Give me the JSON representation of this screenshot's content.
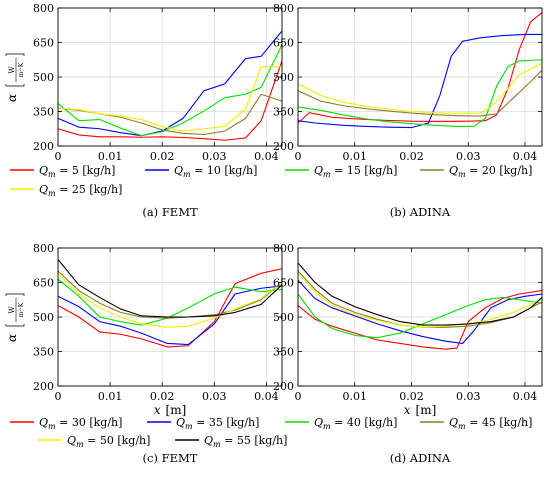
{
  "figure": {
    "ylabel_main": "α",
    "ylabel_unit_num": "W",
    "ylabel_unit_den": "m²·K",
    "xlabel_text": "x",
    "xlabel_unit": "[m]",
    "captions": [
      "(a) FEMT",
      "(b) ADINA",
      "(c) FEMT",
      "(d) ADINA"
    ]
  },
  "legends": [
    {
      "entries": [
        {
          "sym": "Q",
          "sub": "m",
          "text": " = 5 [kg/h]",
          "color": "#ff0000"
        },
        {
          "sym": "Q",
          "sub": "m",
          "text": " = 10 [kg/h]",
          "color": "#0000ff"
        },
        {
          "sym": "Q",
          "sub": "m",
          "text": " = 15 [kg/h]",
          "color": "#00e000"
        },
        {
          "sym": "Q",
          "sub": "m",
          "text": " = 20 [kg/h]",
          "color": "#8b7d2b"
        },
        {
          "sym": "Q",
          "sub": "m",
          "text": " = 25 [kg/h]",
          "color": "#f0f000"
        }
      ]
    },
    {
      "entries": [
        {
          "sym": "Q",
          "sub": "m",
          "text": " = 30 [kg/h]",
          "color": "#ff0000"
        },
        {
          "sym": "Q",
          "sub": "m",
          "text": " = 35 [kg/h]",
          "color": "#0000ff"
        },
        {
          "sym": "Q",
          "sub": "m",
          "text": " = 40 [kg/h]",
          "color": "#00e000"
        },
        {
          "sym": "Q",
          "sub": "m",
          "text": " = 45 [kg/h]",
          "color": "#8b7d2b"
        },
        {
          "sym": "Q",
          "sub": "m",
          "text": " = 50 [kg/h]",
          "color": "#f0f000"
        },
        {
          "sym": "Q",
          "sub": "m",
          "text": " = 55 [kg/h]",
          "color": "#000000"
        }
      ]
    }
  ],
  "chart_data": [
    {
      "type": "line",
      "panel": "a",
      "caption": "(a) FEMT",
      "xlim": [
        0,
        0.043
      ],
      "ylim": [
        200,
        800
      ],
      "xticks": [
        0,
        0.01,
        0.02,
        0.03,
        0.04
      ],
      "xtick_labels": [
        "0",
        "0.01",
        "0.02",
        "0.03",
        "0.04"
      ],
      "yticks": [
        200,
        350,
        500,
        650,
        800
      ],
      "ytick_labels": [
        "200",
        "350",
        "500",
        "650",
        "800"
      ],
      "grid": true,
      "series": [
        {
          "name": "Q_m = 5 [kg/h]",
          "color": "#ff0000",
          "x": [
            0,
            0.004,
            0.008,
            0.012,
            0.016,
            0.02,
            0.024,
            0.028,
            0.032,
            0.036,
            0.039,
            0.043
          ],
          "y": [
            275,
            248,
            240,
            240,
            238,
            240,
            237,
            232,
            225,
            235,
            310,
            570
          ]
        },
        {
          "name": "Q_m = 10 [kg/h]",
          "color": "#0000ff",
          "x": [
            0,
            0.004,
            0.008,
            0.012,
            0.016,
            0.02,
            0.024,
            0.028,
            0.032,
            0.036,
            0.039,
            0.043
          ],
          "y": [
            320,
            282,
            275,
            258,
            245,
            265,
            320,
            440,
            470,
            580,
            590,
            700
          ]
        },
        {
          "name": "Q_m = 15 [kg/h]",
          "color": "#00e000",
          "x": [
            0,
            0.004,
            0.008,
            0.012,
            0.016,
            0.02,
            0.024,
            0.028,
            0.032,
            0.036,
            0.039,
            0.043
          ],
          "y": [
            385,
            310,
            315,
            278,
            245,
            262,
            300,
            352,
            410,
            425,
            455,
            640
          ]
        },
        {
          "name": "Q_m = 20 [kg/h]",
          "color": "#8b7d2b",
          "x": [
            0,
            0.004,
            0.008,
            0.012,
            0.016,
            0.02,
            0.024,
            0.028,
            0.032,
            0.036,
            0.039,
            0.043
          ],
          "y": [
            365,
            355,
            340,
            325,
            300,
            270,
            255,
            250,
            265,
            320,
            425,
            395
          ]
        },
        {
          "name": "Q_m = 25 [kg/h]",
          "color": "#f0f000",
          "x": [
            0,
            0.004,
            0.008,
            0.012,
            0.016,
            0.02,
            0.024,
            0.028,
            0.032,
            0.036,
            0.039,
            0.043
          ],
          "y": [
            365,
            358,
            340,
            330,
            315,
            285,
            265,
            275,
            285,
            360,
            545,
            545
          ]
        }
      ]
    },
    {
      "type": "line",
      "panel": "b",
      "caption": "(b) ADINA",
      "xlim": [
        0,
        0.043
      ],
      "ylim": [
        200,
        800
      ],
      "xticks": [
        0,
        0.01,
        0.02,
        0.03,
        0.04
      ],
      "xtick_labels": [
        "0",
        "0.01",
        "0.02",
        "0.03",
        "0.04"
      ],
      "yticks": [
        200,
        350,
        500,
        650,
        800
      ],
      "ytick_labels": [
        "200",
        "350",
        "500",
        "650",
        "800"
      ],
      "grid": true,
      "series": [
        {
          "name": "Q_m = 5 [kg/h]",
          "color": "#ff0000",
          "x": [
            0,
            0.002,
            0.006,
            0.01,
            0.015,
            0.02,
            0.025,
            0.03,
            0.033,
            0.035,
            0.037,
            0.039,
            0.041,
            0.043
          ],
          "y": [
            300,
            345,
            325,
            318,
            312,
            308,
            307,
            308,
            310,
            335,
            450,
            620,
            740,
            780
          ]
        },
        {
          "name": "Q_m = 10 [kg/h]",
          "color": "#0000ff",
          "x": [
            0,
            0.003,
            0.008,
            0.012,
            0.016,
            0.02,
            0.023,
            0.025,
            0.027,
            0.029,
            0.032,
            0.036,
            0.04,
            0.043
          ],
          "y": [
            310,
            300,
            290,
            285,
            282,
            280,
            300,
            420,
            590,
            655,
            670,
            680,
            685,
            685
          ]
        },
        {
          "name": "Q_m = 15 [kg/h]",
          "color": "#00e000",
          "x": [
            0,
            0.004,
            0.008,
            0.012,
            0.016,
            0.02,
            0.024,
            0.028,
            0.031,
            0.033,
            0.035,
            0.037,
            0.039,
            0.043
          ],
          "y": [
            370,
            355,
            335,
            318,
            305,
            297,
            290,
            285,
            285,
            320,
            460,
            545,
            570,
            575
          ]
        },
        {
          "name": "Q_m = 20 [kg/h]",
          "color": "#8b7d2b",
          "x": [
            0,
            0.004,
            0.008,
            0.012,
            0.016,
            0.02,
            0.024,
            0.028,
            0.032,
            0.035,
            0.038,
            0.041,
            0.043
          ],
          "y": [
            440,
            395,
            375,
            362,
            352,
            343,
            336,
            332,
            330,
            340,
            410,
            480,
            530
          ]
        },
        {
          "name": "Q_m = 25 [kg/h]",
          "color": "#f0f000",
          "x": [
            0,
            0.004,
            0.008,
            0.012,
            0.016,
            0.02,
            0.024,
            0.028,
            0.032,
            0.034,
            0.036,
            0.039,
            0.043
          ],
          "y": [
            470,
            420,
            390,
            372,
            360,
            350,
            345,
            342,
            342,
            370,
            420,
            510,
            560
          ]
        }
      ]
    },
    {
      "type": "line",
      "panel": "c",
      "caption": "(c) FEMT",
      "xlim": [
        0,
        0.043
      ],
      "ylim": [
        200,
        800
      ],
      "xticks": [
        0,
        0.01,
        0.02,
        0.03,
        0.04
      ],
      "xtick_labels": [
        "0",
        "0.01",
        "0.02",
        "0.03",
        "0.04"
      ],
      "yticks": [
        200,
        350,
        500,
        650,
        800
      ],
      "ytick_labels": [
        "200",
        "350",
        "500",
        "650",
        "800"
      ],
      "grid": true,
      "xlabel": "x [m]",
      "series": [
        {
          "name": "Q_m = 30 [kg/h]",
          "color": "#ff0000",
          "x": [
            0,
            0.004,
            0.008,
            0.012,
            0.016,
            0.021,
            0.025,
            0.03,
            0.034,
            0.039,
            0.043
          ],
          "y": [
            550,
            500,
            435,
            425,
            405,
            370,
            375,
            480,
            645,
            690,
            710
          ]
        },
        {
          "name": "Q_m = 35 [kg/h]",
          "color": "#0000ff",
          "x": [
            0,
            0.004,
            0.008,
            0.012,
            0.016,
            0.021,
            0.025,
            0.03,
            0.034,
            0.039,
            0.043
          ],
          "y": [
            590,
            545,
            480,
            460,
            430,
            385,
            380,
            470,
            600,
            625,
            635
          ]
        },
        {
          "name": "Q_m = 40 [kg/h]",
          "color": "#00e000",
          "x": [
            0,
            0.004,
            0.008,
            0.012,
            0.016,
            0.021,
            0.025,
            0.03,
            0.034,
            0.039,
            0.043
          ],
          "y": [
            665,
            590,
            500,
            480,
            465,
            495,
            540,
            600,
            630,
            610,
            620
          ]
        },
        {
          "name": "Q_m = 45 [kg/h]",
          "color": "#8b7d2b",
          "x": [
            0,
            0.004,
            0.008,
            0.012,
            0.016,
            0.021,
            0.025,
            0.03,
            0.034,
            0.039,
            0.043
          ],
          "y": [
            700,
            615,
            560,
            520,
            500,
            495,
            500,
            510,
            530,
            575,
            650
          ]
        },
        {
          "name": "Q_m = 50 [kg/h]",
          "color": "#f0f000",
          "x": [
            0,
            0.004,
            0.008,
            0.012,
            0.016,
            0.021,
            0.025,
            0.03,
            0.034,
            0.039,
            0.043
          ],
          "y": [
            690,
            600,
            540,
            500,
            470,
            455,
            460,
            495,
            535,
            580,
            650
          ]
        },
        {
          "name": "Q_m = 55 [kg/h]",
          "color": "#000000",
          "x": [
            0,
            0.004,
            0.008,
            0.012,
            0.016,
            0.021,
            0.025,
            0.03,
            0.034,
            0.039,
            0.043
          ],
          "y": [
            750,
            640,
            585,
            535,
            505,
            500,
            500,
            505,
            520,
            555,
            640
          ]
        }
      ]
    },
    {
      "type": "line",
      "panel": "d",
      "caption": "(d) ADINA",
      "xlim": [
        0,
        0.043
      ],
      "ylim": [
        200,
        800
      ],
      "xticks": [
        0,
        0.01,
        0.02,
        0.03,
        0.04
      ],
      "xtick_labels": [
        "0",
        "0.01",
        "0.02",
        "0.03",
        "0.04"
      ],
      "yticks": [
        200,
        350,
        500,
        650,
        800
      ],
      "ytick_labels": [
        "200",
        "350",
        "500",
        "650",
        "800"
      ],
      "grid": true,
      "xlabel": "x [m]",
      "series": [
        {
          "name": "Q_m = 30 [kg/h]",
          "color": "#ff0000",
          "x": [
            0,
            0.003,
            0.006,
            0.01,
            0.014,
            0.018,
            0.022,
            0.026,
            0.028,
            0.03,
            0.033,
            0.036,
            0.039,
            0.043
          ],
          "y": [
            550,
            490,
            460,
            430,
            400,
            385,
            370,
            360,
            365,
            480,
            540,
            580,
            600,
            615
          ]
        },
        {
          "name": "Q_m = 35 [kg/h]",
          "color": "#0000ff",
          "x": [
            0,
            0.003,
            0.006,
            0.01,
            0.014,
            0.018,
            0.022,
            0.026,
            0.029,
            0.031,
            0.034,
            0.037,
            0.04,
            0.043
          ],
          "y": [
            660,
            580,
            540,
            505,
            470,
            440,
            415,
            395,
            385,
            440,
            540,
            575,
            590,
            600
          ]
        },
        {
          "name": "Q_m = 40 [kg/h]",
          "color": "#00e000",
          "x": [
            0,
            0.003,
            0.006,
            0.01,
            0.014,
            0.018,
            0.022,
            0.026,
            0.03,
            0.033,
            0.036,
            0.039,
            0.043
          ],
          "y": [
            600,
            500,
            450,
            420,
            410,
            430,
            470,
            510,
            550,
            575,
            585,
            575,
            560
          ]
        },
        {
          "name": "Q_m = 45 [kg/h]",
          "color": "#8b7d2b",
          "x": [
            0,
            0.003,
            0.006,
            0.01,
            0.014,
            0.018,
            0.022,
            0.026,
            0.03,
            0.034,
            0.038,
            0.041,
            0.043
          ],
          "y": [
            700,
            620,
            560,
            520,
            490,
            465,
            455,
            455,
            460,
            475,
            500,
            540,
            565
          ]
        },
        {
          "name": "Q_m = 50 [kg/h]",
          "color": "#f0f000",
          "x": [
            0,
            0.003,
            0.006,
            0.01,
            0.014,
            0.018,
            0.022,
            0.026,
            0.03,
            0.034,
            0.038,
            0.041,
            0.043
          ],
          "y": [
            690,
            610,
            550,
            510,
            485,
            465,
            455,
            460,
            470,
            490,
            520,
            555,
            580
          ]
        },
        {
          "name": "Q_m = 55 [kg/h]",
          "color": "#000000",
          "x": [
            0,
            0.003,
            0.006,
            0.01,
            0.014,
            0.018,
            0.022,
            0.026,
            0.03,
            0.034,
            0.038,
            0.041,
            0.043
          ],
          "y": [
            735,
            650,
            590,
            545,
            510,
            480,
            465,
            465,
            470,
            480,
            500,
            540,
            585
          ]
        }
      ]
    }
  ]
}
